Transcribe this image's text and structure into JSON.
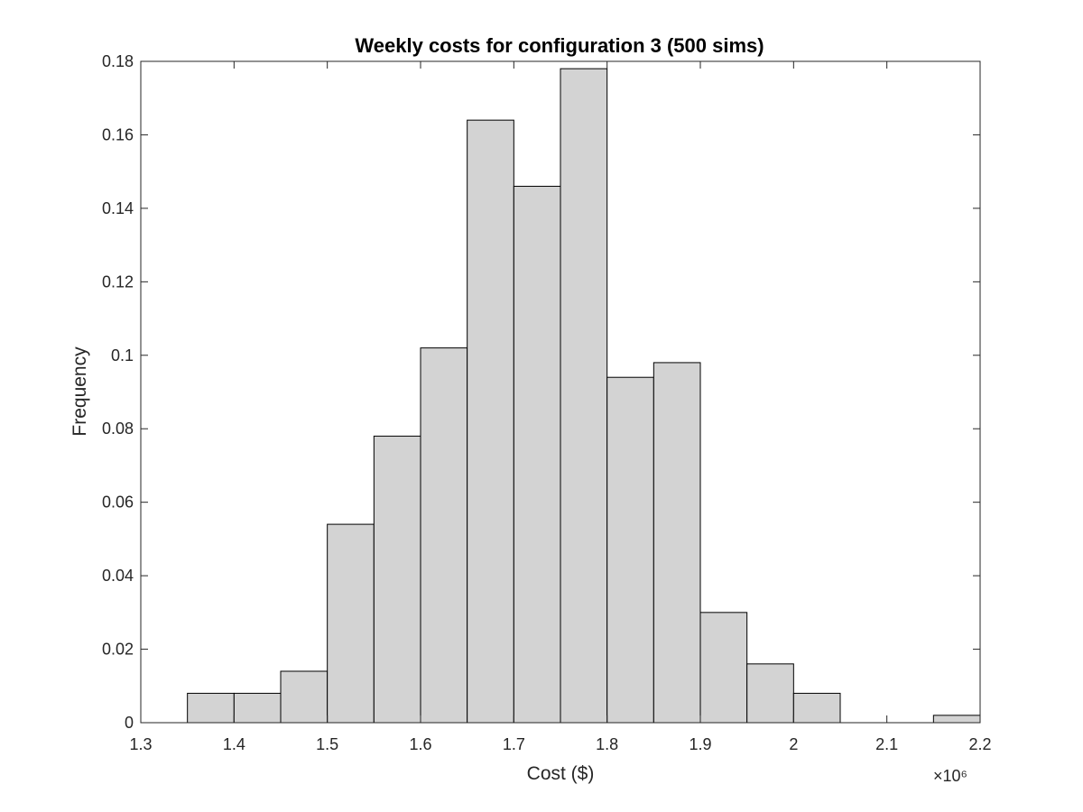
{
  "chart_data": {
    "type": "bar",
    "title": "Weekly costs for configuration 3 (500 sims)",
    "xlabel": "Cost ($)",
    "ylabel": "Frequency",
    "x_exponent_label": "×10⁶",
    "xlim": [
      1.3,
      2.2
    ],
    "ylim": [
      0,
      0.18
    ],
    "xticks": [
      "1.3",
      "1.4",
      "1.5",
      "1.6",
      "1.7",
      "1.8",
      "1.9",
      "2",
      "2.1",
      "2.2"
    ],
    "yticks": [
      "0",
      "0.02",
      "0.04",
      "0.06",
      "0.08",
      "0.1",
      "0.12",
      "0.14",
      "0.16",
      "0.18"
    ],
    "bin_width": 0.05,
    "bin_starts": [
      1.35,
      1.4,
      1.45,
      1.5,
      1.55,
      1.6,
      1.65,
      1.7,
      1.75,
      1.8,
      1.85,
      1.9,
      1.95,
      2.0,
      2.05,
      2.1,
      2.15
    ],
    "values": [
      0.008,
      0.008,
      0.014,
      0.054,
      0.078,
      0.102,
      0.164,
      0.146,
      0.178,
      0.094,
      0.098,
      0.03,
      0.016,
      0.008,
      0.0,
      0.0,
      0.002
    ],
    "bar_color": "#d3d3d3",
    "edge_color": "#000000",
    "grid": false
  }
}
